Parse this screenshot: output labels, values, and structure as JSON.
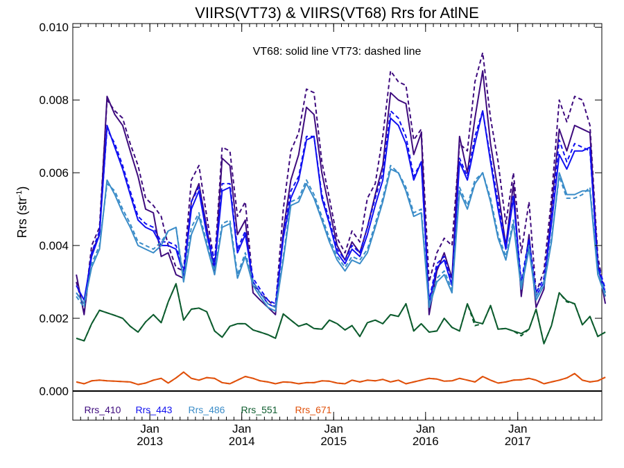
{
  "chart_data": {
    "type": "line",
    "title": "VIIRS(VT73) & VIIRS(VT68)  Rrs for AtlNE",
    "subtitle": "VT68: solid line   VT73: dashed line",
    "ylabel": "Rrs (str",
    "ylabel_sup": "-1",
    "ylabel_close": ")",
    "ylim": [
      -0.0008,
      0.0101
    ],
    "y_ticks": [
      {
        "value": 0.0,
        "label": "0.000"
      },
      {
        "value": 0.002,
        "label": "0.002"
      },
      {
        "value": 0.004,
        "label": "0.004"
      },
      {
        "value": 0.006,
        "label": "0.006"
      },
      {
        "value": 0.008,
        "label": "0.008"
      },
      {
        "value": 0.01,
        "label": "0.010"
      }
    ],
    "x_range": [
      "2012-03-01",
      "2017-12-01"
    ],
    "x_ticks": [
      {
        "date": "2013-01-01",
        "month": "Jan",
        "year": "2013"
      },
      {
        "date": "2014-01-01",
        "month": "Jan",
        "year": "2014"
      },
      {
        "date": "2015-01-01",
        "month": "Jan",
        "year": "2015"
      },
      {
        "date": "2016-01-01",
        "month": "Jan",
        "year": "2016"
      },
      {
        "date": "2017-01-01",
        "month": "Jan",
        "year": "2017"
      }
    ],
    "x": [
      "2012-03",
      "2012-04",
      "2012-05",
      "2012-06",
      "2012-07",
      "2012-08",
      "2012-09",
      "2012-10",
      "2012-11",
      "2012-12",
      "2013-01",
      "2013-02",
      "2013-03",
      "2013-04",
      "2013-05",
      "2013-06",
      "2013-07",
      "2013-08",
      "2013-09",
      "2013-10",
      "2013-11",
      "2013-12",
      "2014-01",
      "2014-02",
      "2014-03",
      "2014-04",
      "2014-05",
      "2014-06",
      "2014-07",
      "2014-08",
      "2014-09",
      "2014-10",
      "2014-11",
      "2014-12",
      "2015-01",
      "2015-02",
      "2015-03",
      "2015-04",
      "2015-05",
      "2015-06",
      "2015-07",
      "2015-08",
      "2015-09",
      "2015-10",
      "2015-11",
      "2015-12",
      "2016-01",
      "2016-02",
      "2016-03",
      "2016-04",
      "2016-05",
      "2016-06",
      "2016-07",
      "2016-08",
      "2016-09",
      "2016-10",
      "2016-11",
      "2016-12",
      "2017-01",
      "2017-02",
      "2017-03",
      "2017-04",
      "2017-05",
      "2017-06",
      "2017-07",
      "2017-08",
      "2017-09",
      "2017-10",
      "2017-11",
      "2017-12"
    ],
    "zero_line": 0.0,
    "legend_position": "bottom-left",
    "series": [
      {
        "name": "Rrs_410",
        "color": "#3d0a7d",
        "vt68": [
          0.0032,
          0.0021,
          0.0038,
          0.0043,
          0.0081,
          0.0076,
          0.0073,
          0.0066,
          0.0059,
          0.005,
          0.0049,
          0.0037,
          0.0038,
          0.0032,
          0.0031,
          0.0052,
          0.0057,
          0.0045,
          0.0032,
          0.0064,
          0.0062,
          0.0043,
          0.0047,
          0.0027,
          0.0025,
          0.0023,
          0.0021,
          0.0044,
          0.0058,
          0.0065,
          0.0078,
          0.0076,
          0.006,
          0.005,
          0.004,
          0.0036,
          0.0041,
          0.0038,
          0.0045,
          0.0054,
          0.0062,
          0.0082,
          0.008,
          0.0079,
          0.0065,
          0.0071,
          0.0021,
          0.0033,
          0.0038,
          0.0031,
          0.007,
          0.006,
          0.0075,
          0.0088,
          0.0068,
          0.0055,
          0.004,
          0.0057,
          0.0026,
          0.0043,
          0.0023,
          0.0028,
          0.005,
          0.0072,
          0.0066,
          0.0073,
          0.0072,
          0.0071,
          0.0035,
          0.0024
        ],
        "vt73": [
          0.003,
          0.0022,
          0.004,
          0.0045,
          0.008,
          0.0077,
          0.0075,
          0.0068,
          0.0062,
          0.0053,
          0.0051,
          0.0048,
          0.004,
          0.0034,
          0.0033,
          0.0058,
          0.0062,
          0.0048,
          0.0035,
          0.0067,
          0.0066,
          0.0048,
          0.0052,
          0.0029,
          0.0027,
          0.0025,
          0.0023,
          0.005,
          0.0066,
          0.0071,
          0.0083,
          0.0082,
          0.0063,
          0.0053,
          0.0042,
          0.0038,
          0.0044,
          0.0041,
          0.0053,
          0.0057,
          0.007,
          0.0088,
          0.0085,
          0.0084,
          0.0069,
          0.0072,
          0.003,
          0.0038,
          0.0042,
          0.004,
          0.0068,
          0.0066,
          0.0085,
          0.0093,
          0.0075,
          0.0063,
          0.0046,
          0.006,
          0.0038,
          0.0052,
          0.0027,
          0.0033,
          0.0053,
          0.008,
          0.0074,
          0.0081,
          0.008,
          0.0073,
          0.0037,
          0.0026
        ]
      },
      {
        "name": "Rrs_443",
        "color": "#1010f0",
        "vt68": [
          0.0029,
          0.0025,
          0.0037,
          0.0043,
          0.0073,
          0.0067,
          0.0061,
          0.0054,
          0.0047,
          0.0045,
          0.0044,
          0.004,
          0.004,
          0.0039,
          0.0032,
          0.005,
          0.0055,
          0.0043,
          0.0034,
          0.0055,
          0.0056,
          0.0038,
          0.0043,
          0.003,
          0.0027,
          0.0024,
          0.0023,
          0.0042,
          0.0053,
          0.0058,
          0.0069,
          0.007,
          0.0053,
          0.0046,
          0.0038,
          0.0035,
          0.0039,
          0.0037,
          0.0043,
          0.0051,
          0.0058,
          0.0075,
          0.0073,
          0.0068,
          0.0058,
          0.0063,
          0.0024,
          0.0034,
          0.0036,
          0.0029,
          0.0063,
          0.0058,
          0.0068,
          0.0077,
          0.0063,
          0.005,
          0.0039,
          0.0053,
          0.0029,
          0.0041,
          0.0026,
          0.003,
          0.0046,
          0.0065,
          0.0061,
          0.0066,
          0.0066,
          0.0067,
          0.0034,
          0.0027
        ],
        "vt73": [
          0.0027,
          0.0024,
          0.0038,
          0.0044,
          0.0072,
          0.0068,
          0.0062,
          0.0055,
          0.0048,
          0.0046,
          0.0045,
          0.0041,
          0.0041,
          0.004,
          0.0033,
          0.0052,
          0.0056,
          0.0044,
          0.0036,
          0.0057,
          0.0057,
          0.0039,
          0.0044,
          0.0031,
          0.0028,
          0.0025,
          0.0024,
          0.0043,
          0.0055,
          0.0059,
          0.007,
          0.007,
          0.0054,
          0.0047,
          0.0039,
          0.0036,
          0.004,
          0.0038,
          0.0045,
          0.0053,
          0.006,
          0.0077,
          0.0075,
          0.007,
          0.0059,
          0.0063,
          0.0025,
          0.0035,
          0.0037,
          0.003,
          0.0064,
          0.0059,
          0.007,
          0.0077,
          0.0064,
          0.0052,
          0.004,
          0.0054,
          0.003,
          0.0042,
          0.0027,
          0.0031,
          0.0048,
          0.0069,
          0.0063,
          0.0068,
          0.0067,
          0.0066,
          0.0035,
          0.0028
        ]
      },
      {
        "name": "Rrs_486",
        "color": "#3a8cc8",
        "vt68": [
          0.0027,
          0.0024,
          0.0034,
          0.0039,
          0.0058,
          0.0054,
          0.0049,
          0.0045,
          0.004,
          0.0039,
          0.0038,
          0.004,
          0.0044,
          0.0045,
          0.003,
          0.0043,
          0.0048,
          0.004,
          0.0032,
          0.0045,
          0.0046,
          0.0031,
          0.0037,
          0.0029,
          0.0026,
          0.0023,
          0.0022,
          0.0036,
          0.0051,
          0.0052,
          0.0057,
          0.0053,
          0.0047,
          0.0041,
          0.0036,
          0.0033,
          0.0036,
          0.0035,
          0.0038,
          0.0045,
          0.0052,
          0.0061,
          0.006,
          0.0055,
          0.0048,
          0.0049,
          0.0023,
          0.003,
          0.0032,
          0.0027,
          0.0055,
          0.005,
          0.0057,
          0.006,
          0.0052,
          0.0042,
          0.0036,
          0.0046,
          0.0028,
          0.0039,
          0.0025,
          0.0029,
          0.0041,
          0.006,
          0.0054,
          0.0054,
          0.0055,
          0.0055,
          0.0032,
          0.0026
        ],
        "vt73": [
          0.0026,
          0.0023,
          0.0035,
          0.004,
          0.0057,
          0.0055,
          0.005,
          0.0046,
          0.0041,
          0.004,
          0.0039,
          0.0041,
          0.0044,
          0.0045,
          0.0031,
          0.0045,
          0.0049,
          0.0041,
          0.0033,
          0.0046,
          0.0047,
          0.0032,
          0.0038,
          0.003,
          0.0027,
          0.0024,
          0.0023,
          0.0037,
          0.0052,
          0.0053,
          0.0058,
          0.0054,
          0.0048,
          0.0042,
          0.0037,
          0.0034,
          0.0037,
          0.0036,
          0.0039,
          0.0046,
          0.0053,
          0.0062,
          0.006,
          0.0056,
          0.0049,
          0.005,
          0.0024,
          0.0031,
          0.0033,
          0.0028,
          0.0056,
          0.0051,
          0.0058,
          0.006,
          0.0053,
          0.0043,
          0.0037,
          0.0047,
          0.0029,
          0.004,
          0.0026,
          0.003,
          0.0042,
          0.0059,
          0.0053,
          0.0053,
          0.0054,
          0.0056,
          0.0033,
          0.0027
        ]
      },
      {
        "name": "Rrs_551",
        "color": "#0d5c2e",
        "vt68": [
          0.00145,
          0.00138,
          0.00185,
          0.00222,
          0.00215,
          0.00208,
          0.002,
          0.00178,
          0.00162,
          0.0019,
          0.0021,
          0.00188,
          0.00245,
          0.00295,
          0.00195,
          0.00225,
          0.00228,
          0.00218,
          0.00165,
          0.00148,
          0.00178,
          0.00185,
          0.00185,
          0.00168,
          0.00162,
          0.00155,
          0.00145,
          0.00212,
          0.00195,
          0.00178,
          0.00185,
          0.00172,
          0.0017,
          0.00195,
          0.00185,
          0.00168,
          0.0018,
          0.0015,
          0.00188,
          0.00195,
          0.00185,
          0.0021,
          0.00205,
          0.0024,
          0.00165,
          0.00185,
          0.00162,
          0.00165,
          0.002,
          0.00175,
          0.00165,
          0.0024,
          0.0019,
          0.00185,
          0.00235,
          0.0017,
          0.00172,
          0.00165,
          0.00158,
          0.0017,
          0.00225,
          0.0013,
          0.0018,
          0.0027,
          0.00248,
          0.0024,
          0.00182,
          0.00205,
          0.0015,
          0.00162
        ],
        "vt73": [
          0.00145,
          0.00138,
          0.00185,
          0.00222,
          0.00215,
          0.00208,
          0.002,
          0.00178,
          0.00162,
          0.0019,
          0.0021,
          0.00188,
          0.00245,
          0.00295,
          0.00195,
          0.00225,
          0.00228,
          0.00218,
          0.00165,
          0.00148,
          0.00178,
          0.00185,
          0.00185,
          0.00168,
          0.00162,
          0.00155,
          0.00145,
          0.00212,
          0.00195,
          0.00178,
          0.00185,
          0.00172,
          0.0017,
          0.00195,
          0.00185,
          0.00168,
          0.0018,
          0.0015,
          0.00188,
          0.00195,
          0.00185,
          0.0021,
          0.00205,
          0.0024,
          0.00165,
          0.00185,
          0.00162,
          0.00165,
          0.002,
          0.00175,
          0.00165,
          0.0024,
          0.0018,
          0.00185,
          0.00235,
          0.0017,
          0.00172,
          0.00165,
          0.00152,
          0.0017,
          0.00225,
          0.0013,
          0.0018,
          0.0027,
          0.00245,
          0.0024,
          0.00182,
          0.00205,
          0.0015,
          0.00162
        ]
      },
      {
        "name": "Rrs_671",
        "color": "#e0500a",
        "vt68": [
          0.00025,
          0.0002,
          0.00028,
          0.0003,
          0.00028,
          0.00027,
          0.00026,
          0.00025,
          0.00018,
          0.00022,
          0.0003,
          0.00035,
          0.00022,
          0.00036,
          0.00052,
          0.00035,
          0.0003,
          0.00037,
          0.00035,
          0.00023,
          0.0002,
          0.0003,
          0.0004,
          0.00035,
          0.00028,
          0.00025,
          0.0002,
          0.00025,
          0.00024,
          0.0002,
          0.00023,
          0.00023,
          0.00028,
          0.00027,
          0.00022,
          0.0002,
          0.0003,
          0.00025,
          0.0003,
          0.00028,
          0.00032,
          0.00025,
          0.0003,
          0.0002,
          0.00025,
          0.0003,
          0.00035,
          0.00033,
          0.00027,
          0.00028,
          0.00035,
          0.0003,
          0.00025,
          0.0004,
          0.0003,
          0.00022,
          0.00025,
          0.0003,
          0.00031,
          0.00035,
          0.0003,
          0.0002,
          0.00025,
          0.0003,
          0.00036,
          0.00048,
          0.0003,
          0.00025,
          0.00028,
          0.00038
        ],
        "vt73": [
          0.00025,
          0.0002,
          0.00028,
          0.0003,
          0.00028,
          0.00027,
          0.00026,
          0.00025,
          0.00018,
          0.00022,
          0.0003,
          0.00035,
          0.00022,
          0.00036,
          0.00052,
          0.00035,
          0.0003,
          0.00037,
          0.00035,
          0.00023,
          0.0002,
          0.0003,
          0.0004,
          0.00035,
          0.00028,
          0.00025,
          0.0002,
          0.00025,
          0.00024,
          0.0002,
          0.00023,
          0.00023,
          0.00028,
          0.00027,
          0.00022,
          0.0002,
          0.0003,
          0.00025,
          0.0003,
          0.00028,
          0.00032,
          0.00025,
          0.0003,
          0.0002,
          0.00025,
          0.0003,
          0.00035,
          0.00033,
          0.00027,
          0.00028,
          0.00035,
          0.0003,
          0.00025,
          0.0004,
          0.0003,
          0.00022,
          0.00025,
          0.0003,
          0.00031,
          0.00035,
          0.0003,
          0.0002,
          0.00025,
          0.0003,
          0.00036,
          0.00048,
          0.0003,
          0.00025,
          0.00028,
          0.00038
        ]
      }
    ]
  }
}
